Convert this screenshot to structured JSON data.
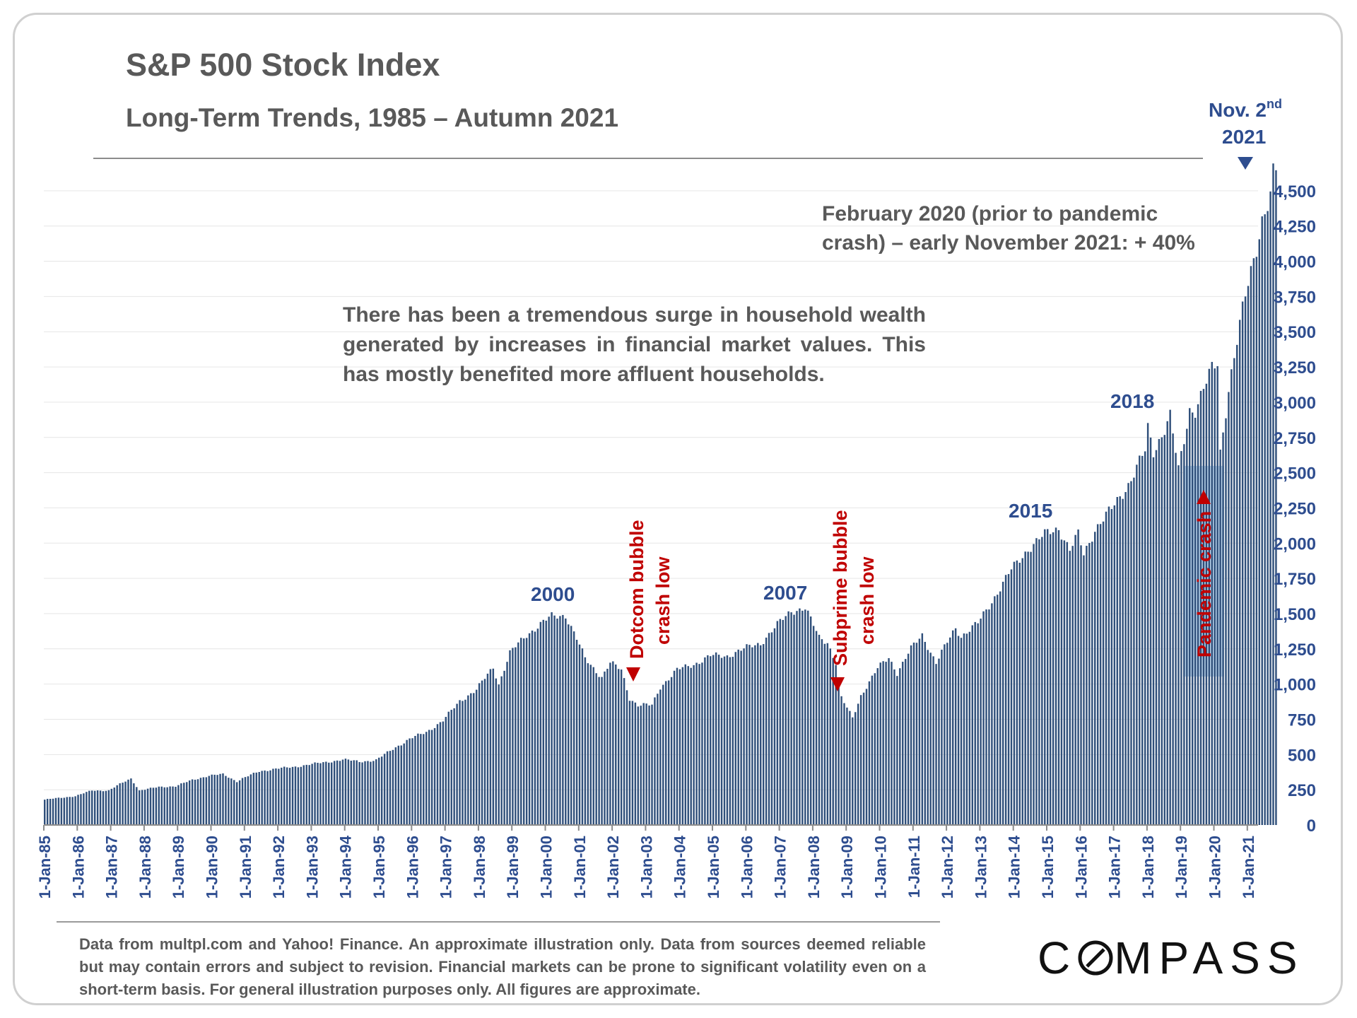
{
  "header": {
    "title": "S&P 500 Stock Index",
    "subtitle": "Long-Term Trends, 1985 – Autumn 2021"
  },
  "annotations": {
    "nov2021_line1": "Nov. 2",
    "nov2021_sup": "nd",
    "nov2021_line2": "2021",
    "feb2020_note": "February 2020 (prior to pandemic crash) – early November 2021: + 40%",
    "wealth_note": "There has been a tremendous surge in household wealth generated by increases in financial market values. This has mostly benefited more affluent households.",
    "peak_2000": "2000",
    "peak_2007": "2007",
    "peak_2015": "2015",
    "peak_2018": "2018",
    "dotcom_line1": "Dotcom bubble",
    "dotcom_line2": "crash low",
    "subprime_line1": "Subprime bubble",
    "subprime_line2": "crash low",
    "pandemic": "Pandemic crash"
  },
  "footer": {
    "source": "Data from multpl.com and Yahoo! Finance. An approximate illustration only. Data from sources deemed reliable but may contain errors and subject to revision. Financial markets can be prone to significant volatility even on a short-term basis. For general illustration purposes only. All figures are approximate.",
    "logo_before": "C",
    "logo_after": "MPASS"
  },
  "colors": {
    "bar": "#2f4f7a",
    "accent_blue": "#2e4d8f",
    "accent_red": "#c00000",
    "pandemic_box": "#bdd7ee",
    "text_gray": "#595959"
  },
  "chart_data": {
    "type": "bar",
    "title": "S&P 500 Stock Index",
    "subtitle": "Long-Term Trends, 1985 – Autumn 2021",
    "ylim": [
      0,
      4700
    ],
    "y_ticks": [
      0,
      250,
      500,
      750,
      1000,
      1250,
      1500,
      1750,
      2000,
      2250,
      2500,
      2750,
      3000,
      3250,
      3500,
      3750,
      4000,
      4250,
      4500
    ],
    "y_tick_labels": [
      "0",
      "250",
      "500",
      "750",
      "1,000",
      "1,250",
      "1,500",
      "1,750",
      "2,000",
      "2,250",
      "2,500",
      "2,750",
      "3,000",
      "3,250",
      "3,500",
      "3,750",
      "4,000",
      "4,250",
      "4,500"
    ],
    "x_tick_labels": [
      "1-Jan-85",
      "1-Jan-86",
      "1-Jan-87",
      "1-Jan-88",
      "1-Jan-89",
      "1-Jan-90",
      "1-Jan-91",
      "1-Jan-92",
      "1-Jan-93",
      "1-Jan-94",
      "1-Jan-95",
      "1-Jan-96",
      "1-Jan-97",
      "1-Jan-98",
      "1-Jan-99",
      "1-Jan-00",
      "1-Jan-01",
      "1-Jan-02",
      "1-Jan-03",
      "1-Jan-04",
      "1-Jan-05",
      "1-Jan-06",
      "1-Jan-07",
      "1-Jan-08",
      "1-Jan-09",
      "1-Jan-10",
      "1-Jan-11",
      "1-Jan-12",
      "1-Jan-13",
      "1-Jan-14",
      "1-Jan-15",
      "1-Jan-16",
      "1-Jan-17",
      "1-Jan-18",
      "1-Jan-19",
      "1-Jan-20",
      "1-Jan-21"
    ],
    "grid": true,
    "frequency": "monthly",
    "start": "Jan-1985",
    "end": "Nov-2021",
    "anchors": [
      [
        "1985-01",
        180
      ],
      [
        "1985-12",
        205
      ],
      [
        "1986-06",
        245
      ],
      [
        "1986-12",
        245
      ],
      [
        "1987-04",
        290
      ],
      [
        "1987-08",
        330
      ],
      [
        "1987-11",
        245
      ],
      [
        "1988-06",
        270
      ],
      [
        "1988-12",
        275
      ],
      [
        "1989-06",
        320
      ],
      [
        "1989-12",
        350
      ],
      [
        "1990-05",
        360
      ],
      [
        "1990-10",
        310
      ],
      [
        "1990-12",
        330
      ],
      [
        "1991-06",
        380
      ],
      [
        "1991-12",
        400
      ],
      [
        "1992-06",
        410
      ],
      [
        "1992-12",
        430
      ],
      [
        "1993-06",
        445
      ],
      [
        "1993-12",
        465
      ],
      [
        "1994-06",
        450
      ],
      [
        "1994-12",
        460
      ],
      [
        "1995-06",
        540
      ],
      [
        "1995-12",
        610
      ],
      [
        "1996-06",
        660
      ],
      [
        "1996-12",
        740
      ],
      [
        "1997-06",
        880
      ],
      [
        "1997-12",
        960
      ],
      [
        "1998-06",
        1120
      ],
      [
        "1998-08",
        1000
      ],
      [
        "1998-12",
        1220
      ],
      [
        "1999-06",
        1350
      ],
      [
        "1999-12",
        1440
      ],
      [
        "2000-03",
        1480
      ],
      [
        "2000-08",
        1490
      ],
      [
        "2000-12",
        1320
      ],
      [
        "2001-03",
        1180
      ],
      [
        "2001-09",
        1050
      ],
      [
        "2001-12",
        1150
      ],
      [
        "2002-04",
        1100
      ],
      [
        "2002-07",
        900
      ],
      [
        "2002-10",
        850
      ],
      [
        "2003-03",
        850
      ],
      [
        "2003-06",
        980
      ],
      [
        "2003-12",
        1100
      ],
      [
        "2004-06",
        1140
      ],
      [
        "2004-12",
        1200
      ],
      [
        "2005-06",
        1200
      ],
      [
        "2005-12",
        1250
      ],
      [
        "2006-06",
        1290
      ],
      [
        "2006-12",
        1420
      ],
      [
        "2007-05",
        1520
      ],
      [
        "2007-10",
        1540
      ],
      [
        "2008-03",
        1330
      ],
      [
        "2008-06",
        1300
      ],
      [
        "2008-09",
        1150
      ],
      [
        "2008-11",
        900
      ],
      [
        "2009-03",
        760
      ],
      [
        "2009-06",
        920
      ],
      [
        "2009-12",
        1110
      ],
      [
        "2010-04",
        1190
      ],
      [
        "2010-07",
        1080
      ],
      [
        "2010-12",
        1250
      ],
      [
        "2011-04",
        1350
      ],
      [
        "2011-09",
        1150
      ],
      [
        "2011-12",
        1260
      ],
      [
        "2012-04",
        1400
      ],
      [
        "2012-06",
        1340
      ],
      [
        "2012-12",
        1430
      ],
      [
        "2013-06",
        1620
      ],
      [
        "2013-12",
        1810
      ],
      [
        "2014-06",
        1960
      ],
      [
        "2014-12",
        2060
      ],
      [
        "2015-05",
        2110
      ],
      [
        "2015-09",
        1950
      ],
      [
        "2015-12",
        2060
      ],
      [
        "2016-02",
        1920
      ],
      [
        "2016-06",
        2100
      ],
      [
        "2016-12",
        2240
      ],
      [
        "2017-06",
        2420
      ],
      [
        "2017-12",
        2650
      ],
      [
        "2018-01",
        2810
      ],
      [
        "2018-03",
        2650
      ],
      [
        "2018-09",
        2900
      ],
      [
        "2018-12",
        2510
      ],
      [
        "2019-04",
        2950
      ],
      [
        "2019-06",
        2950
      ],
      [
        "2019-12",
        3230
      ],
      [
        "2020-02",
        3280
      ],
      [
        "2020-03",
        2650
      ],
      [
        "2020-06",
        3100
      ],
      [
        "2020-12",
        3750
      ],
      [
        "2021-06",
        4300
      ],
      [
        "2021-09",
        4450
      ],
      [
        "2021-10",
        4600
      ],
      [
        "2021-11",
        4630
      ]
    ]
  }
}
